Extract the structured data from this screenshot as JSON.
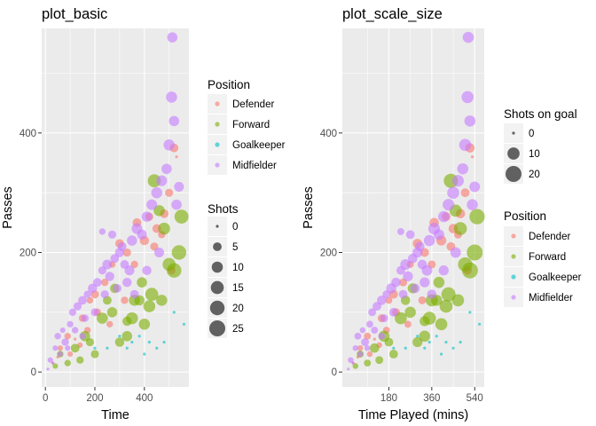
{
  "chart_data": [
    {
      "type": "scatter",
      "title": "plot_basic",
      "xlabel": "Time",
      "ylabel": "Passes",
      "xlim": [
        -15,
        580
      ],
      "ylim": [
        -25,
        575
      ],
      "x_ticks": [
        0,
        200,
        400
      ],
      "y_ticks": [
        0,
        200,
        400
      ],
      "x_tick_labels": [
        "0",
        "200",
        "400"
      ],
      "y_tick_labels": [
        "0",
        "200",
        "400"
      ],
      "color_legend": {
        "title": "Position",
        "entries": [
          "Defender",
          "Forward",
          "Goalkeeper",
          "Midfielder"
        ],
        "colors": [
          "#F8766D",
          "#7CAE00",
          "#00BFC4",
          "#C77CFF"
        ]
      },
      "size_legend": {
        "title": "Shots",
        "values": [
          0,
          5,
          10,
          15,
          20,
          25
        ],
        "labels": [
          "0",
          "5",
          "10",
          "15",
          "20",
          "25"
        ]
      },
      "grid": true,
      "legend_position": "right",
      "marker_alpha": 0.6,
      "series": [
        {
          "name": "Defender",
          "color": "#F8766D",
          "points": [
            [
              30,
              15,
              0
            ],
            [
              60,
              40,
              1
            ],
            [
              90,
              60,
              2
            ],
            [
              120,
              55,
              0
            ],
            [
              150,
              90,
              3
            ],
            [
              180,
              120,
              2
            ],
            [
              200,
              130,
              4
            ],
            [
              240,
              150,
              3
            ],
            [
              270,
              180,
              2
            ],
            [
              300,
              215,
              5
            ],
            [
              330,
              200,
              4
            ],
            [
              360,
              180,
              3
            ],
            [
              400,
              220,
              6
            ],
            [
              420,
              260,
              4
            ],
            [
              450,
              240,
              5
            ],
            [
              480,
              265,
              5
            ],
            [
              500,
              300,
              4
            ],
            [
              520,
              375,
              5
            ],
            [
              530,
              360,
              0
            ],
            [
              510,
              170,
              4
            ],
            [
              320,
              120,
              3
            ],
            [
              260,
              80,
              2
            ],
            [
              210,
              100,
              3
            ],
            [
              170,
              70,
              2
            ],
            [
              140,
              45,
              1
            ],
            [
              100,
              30,
              1
            ],
            [
              50,
              25,
              0
            ],
            [
              370,
              250,
              5
            ],
            [
              440,
              210,
              4
            ],
            [
              470,
              230,
              3
            ]
          ]
        },
        {
          "name": "Forward",
          "color": "#7CAE00",
          "points": [
            [
              60,
              30,
              2
            ],
            [
              120,
              40,
              5
            ],
            [
              160,
              60,
              8
            ],
            [
              200,
              30,
              4
            ],
            [
              230,
              90,
              10
            ],
            [
              270,
              100,
              8
            ],
            [
              300,
              50,
              6
            ],
            [
              330,
              60,
              8
            ],
            [
              350,
              90,
              12
            ],
            [
              360,
              120,
              10
            ],
            [
              380,
              120,
              8
            ],
            [
              400,
              80,
              10
            ],
            [
              420,
              110,
              12
            ],
            [
              430,
              130,
              15
            ],
            [
              440,
              320,
              15
            ],
            [
              460,
              270,
              10
            ],
            [
              480,
              240,
              12
            ],
            [
              500,
              180,
              15
            ],
            [
              520,
              170,
              20
            ],
            [
              540,
              200,
              20
            ],
            [
              550,
              260,
              18
            ],
            [
              470,
              120,
              10
            ],
            [
              390,
              150,
              8
            ],
            [
              330,
              85,
              6
            ],
            [
              250,
              120,
              5
            ],
            [
              180,
              50,
              4
            ],
            [
              140,
              20,
              3
            ],
            [
              90,
              15,
              2
            ],
            [
              40,
              10,
              1
            ],
            [
              280,
              140,
              6
            ]
          ]
        },
        {
          "name": "Goalkeeper",
          "color": "#00BFC4",
          "points": [
            [
              350,
              50,
              0
            ],
            [
              380,
              60,
              0
            ],
            [
              400,
              30,
              0
            ],
            [
              420,
              50,
              0
            ],
            [
              450,
              40,
              0
            ],
            [
              480,
              50,
              0
            ],
            [
              520,
              100,
              0
            ],
            [
              560,
              80,
              0
            ],
            [
              200,
              40,
              0
            ],
            [
              250,
              40,
              0
            ],
            [
              300,
              60,
              0
            ],
            [
              330,
              40,
              0
            ]
          ]
        },
        {
          "name": "Midfielder",
          "color": "#C77CFF",
          "points": [
            [
              10,
              5,
              0
            ],
            [
              20,
              20,
              1
            ],
            [
              40,
              40,
              1
            ],
            [
              50,
              60,
              2
            ],
            [
              70,
              70,
              1
            ],
            [
              80,
              50,
              3
            ],
            [
              100,
              80,
              2
            ],
            [
              110,
              100,
              3
            ],
            [
              130,
              110,
              4
            ],
            [
              150,
              120,
              5
            ],
            [
              170,
              130,
              3
            ],
            [
              190,
              140,
              6
            ],
            [
              210,
              150,
              5
            ],
            [
              230,
              170,
              4
            ],
            [
              250,
              180,
              7
            ],
            [
              260,
              160,
              6
            ],
            [
              280,
              190,
              5
            ],
            [
              300,
              200,
              6
            ],
            [
              320,
              180,
              5
            ],
            [
              340,
              170,
              7
            ],
            [
              350,
              220,
              8
            ],
            [
              370,
              240,
              9
            ],
            [
              390,
              230,
              7
            ],
            [
              410,
              260,
              8
            ],
            [
              430,
              280,
              9
            ],
            [
              450,
              300,
              10
            ],
            [
              470,
              320,
              9
            ],
            [
              490,
              340,
              8
            ],
            [
              500,
              380,
              10
            ],
            [
              510,
              460,
              10
            ],
            [
              520,
              420,
              8
            ],
            [
              530,
              280,
              8
            ],
            [
              540,
              310,
              7
            ],
            [
              513,
              560,
              8
            ],
            [
              230,
              235,
              2
            ],
            [
              160,
              90,
              3
            ],
            [
              120,
              70,
              2
            ],
            [
              90,
              40,
              1
            ],
            [
              60,
              30,
              1
            ],
            [
              30,
              15,
              0
            ],
            [
              200,
              100,
              4
            ],
            [
              240,
              130,
              4
            ],
            [
              290,
              140,
              5
            ],
            [
              330,
              150,
              6
            ],
            [
              360,
              130,
              5
            ],
            [
              410,
              170,
              6
            ],
            [
              460,
              200,
              7
            ],
            [
              150,
              60,
              2
            ],
            [
              270,
              230,
              4
            ],
            [
              310,
              210,
              5
            ]
          ]
        }
      ]
    },
    {
      "type": "scatter",
      "title": "plot_scale_size",
      "xlabel": "Time Played (mins)",
      "ylabel": "Passes",
      "xlim": [
        -15,
        580
      ],
      "ylim": [
        -25,
        575
      ],
      "x_ticks": [
        180,
        360,
        540
      ],
      "y_ticks": [
        0,
        200,
        400
      ],
      "x_tick_labels": [
        "180",
        "360",
        "540"
      ],
      "y_tick_labels": [
        "0",
        "200",
        "400"
      ],
      "color_legend": {
        "title": "Position",
        "entries": [
          "Defender",
          "Forward",
          "Goalkeeper",
          "Midfielder"
        ],
        "colors": [
          "#F8766D",
          "#7CAE00",
          "#00BFC4",
          "#C77CFF"
        ]
      },
      "size_legend": {
        "title": "Shots on goal",
        "values": [
          0,
          10,
          20
        ],
        "labels": [
          "0",
          "10",
          "20"
        ]
      },
      "grid": true,
      "legend_position": "right",
      "marker_alpha": 0.6,
      "series_source": "same as plot_basic"
    }
  ]
}
